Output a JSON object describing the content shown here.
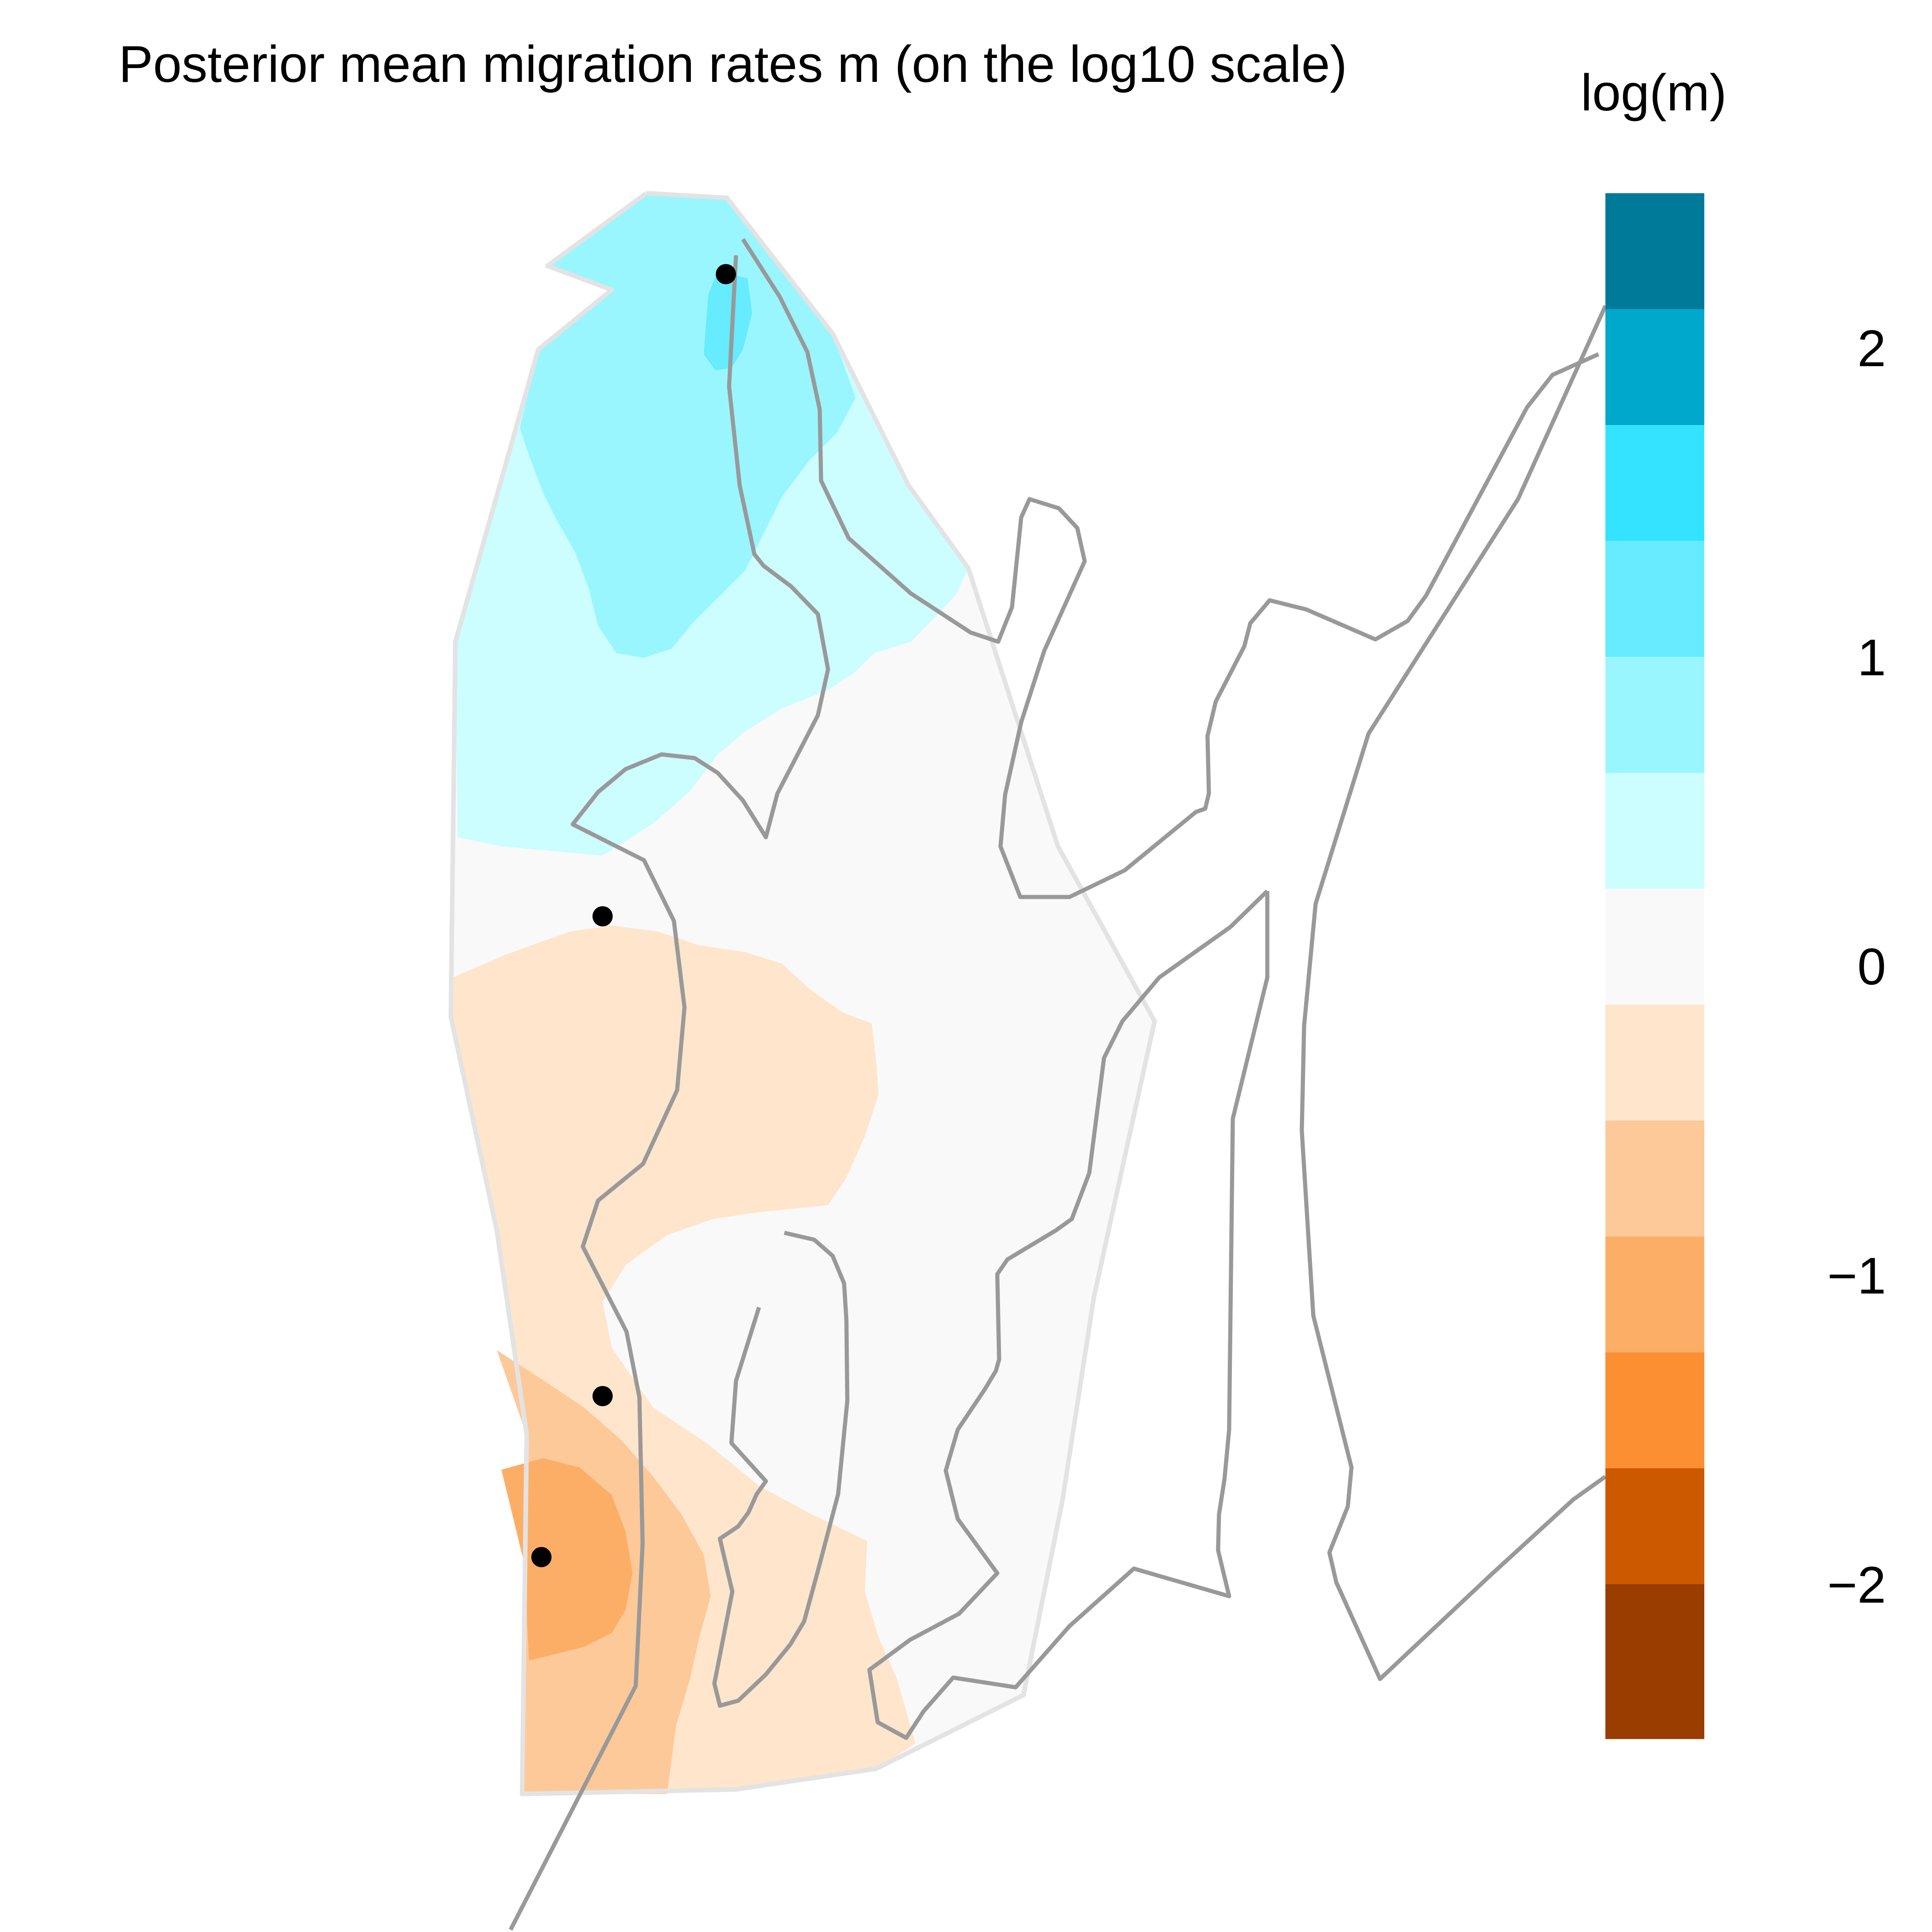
{
  "title": "Posterior mean migration rates m (on the log10 scale)",
  "legend": {
    "title": "log(m)",
    "ticks": [
      "2",
      "1",
      "0",
      "−1",
      "−2"
    ],
    "tick_values": [
      2,
      1,
      0,
      -1,
      -2
    ],
    "range": [
      -2.5,
      2.5
    ],
    "bins": [
      {
        "from": 2.125,
        "to": 2.5,
        "color": "#007A99"
      },
      {
        "from": 1.75,
        "to": 2.125,
        "color": "#00A8CC"
      },
      {
        "from": 1.375,
        "to": 1.75,
        "color": "#33E3FF"
      },
      {
        "from": 1.0,
        "to": 1.375,
        "color": "#66EBFF"
      },
      {
        "from": 0.625,
        "to": 1.0,
        "color": "#99F6FF"
      },
      {
        "from": 0.25,
        "to": 0.625,
        "color": "#CCFDFF"
      },
      {
        "from": -0.125,
        "to": 0.25,
        "color": "#F9F9F9"
      },
      {
        "from": -0.5,
        "to": -0.125,
        "color": "#FEE5CC"
      },
      {
        "from": -0.875,
        "to": -0.5,
        "color": "#FDC999"
      },
      {
        "from": -1.25,
        "to": -0.875,
        "color": "#FDAE66"
      },
      {
        "from": -1.625,
        "to": -1.25,
        "color": "#FC8F32"
      },
      {
        "from": -2.0,
        "to": -1.625,
        "color": "#CC5800"
      },
      {
        "from": -2.5,
        "to": -2.0,
        "color": "#993D00"
      }
    ]
  },
  "map": {
    "demes": 4,
    "colors": {
      "background_low": "#F9F9F9",
      "outline": "#999999",
      "hull": "#E3E3E3",
      "deme_point": "#000000"
    }
  }
}
